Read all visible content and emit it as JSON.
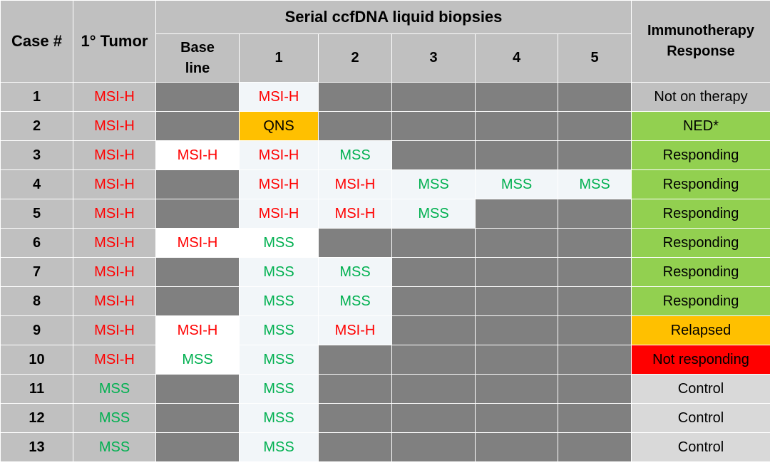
{
  "headers": {
    "case": "Case #",
    "tumor": "1° Tumor",
    "serial": "Serial ccfDNA liquid biopsies",
    "baseline_line1": "Base",
    "baseline_line2": "line",
    "b1": "1",
    "b2": "2",
    "b3": "3",
    "b4": "4",
    "b5": "5",
    "response_line1": "Immunotherapy",
    "response_line2": "Response"
  },
  "colors": {
    "header_gray": "#c0c0c0",
    "no_sample_gray": "#808080",
    "msi_h_text": "#ff0000",
    "mss_text": "#00b050",
    "qns_fill": "#ffc000",
    "responding_fill": "#92d050",
    "relapsed_fill": "#ffc000",
    "not_responding_fill": "#ff0000",
    "control_fill": "#d9d9d9"
  },
  "rows": [
    {
      "case": "1",
      "tumor": "MSI-H",
      "biopsies": [
        null,
        "MSI-H",
        null,
        null,
        null,
        null
      ],
      "response": "Not on therapy",
      "response_status": "none"
    },
    {
      "case": "2",
      "tumor": "MSI-H",
      "biopsies": [
        null,
        "QNS",
        null,
        null,
        null,
        null
      ],
      "response": "NED*",
      "response_status": "responding"
    },
    {
      "case": "3",
      "tumor": "MSI-H",
      "biopsies": [
        "MSI-H",
        "MSI-H",
        "MSS",
        null,
        null,
        null
      ],
      "response": "Responding",
      "response_status": "responding"
    },
    {
      "case": "4",
      "tumor": "MSI-H",
      "biopsies": [
        null,
        "MSI-H",
        "MSI-H",
        "MSS",
        "MSS",
        "MSS"
      ],
      "response": "Responding",
      "response_status": "responding"
    },
    {
      "case": "5",
      "tumor": "MSI-H",
      "biopsies": [
        null,
        "MSI-H",
        "MSI-H",
        "MSS",
        null,
        null
      ],
      "response": "Responding",
      "response_status": "responding"
    },
    {
      "case": "6",
      "tumor": "MSI-H",
      "biopsies": [
        "MSI-H",
        "MSS",
        null,
        null,
        null,
        null
      ],
      "response": "Responding",
      "response_status": "responding"
    },
    {
      "case": "7",
      "tumor": "MSI-H",
      "biopsies": [
        null,
        "MSS",
        "MSS",
        null,
        null,
        null
      ],
      "response": "Responding",
      "response_status": "responding"
    },
    {
      "case": "8",
      "tumor": "MSI-H",
      "biopsies": [
        null,
        "MSS",
        "MSS",
        null,
        null,
        null
      ],
      "response": "Responding",
      "response_status": "responding"
    },
    {
      "case": "9",
      "tumor": "MSI-H",
      "biopsies": [
        "MSI-H",
        "MSS",
        "MSI-H",
        null,
        null,
        null
      ],
      "response": "Relapsed",
      "response_status": "relapsed"
    },
    {
      "case": "10",
      "tumor": "MSI-H",
      "biopsies": [
        "MSS",
        "MSS",
        null,
        null,
        null,
        null
      ],
      "response": "Not responding",
      "response_status": "not_responding"
    },
    {
      "case": "11",
      "tumor": "MSS",
      "biopsies": [
        null,
        "MSS",
        null,
        null,
        null,
        null
      ],
      "response": "Control",
      "response_status": "control"
    },
    {
      "case": "12",
      "tumor": "MSS",
      "biopsies": [
        null,
        "MSS",
        null,
        null,
        null,
        null
      ],
      "response": "Control",
      "response_status": "control"
    },
    {
      "case": "13",
      "tumor": "MSS",
      "biopsies": [
        null,
        "MSS",
        null,
        null,
        null,
        null
      ],
      "response": "Control",
      "response_status": "control"
    }
  ]
}
